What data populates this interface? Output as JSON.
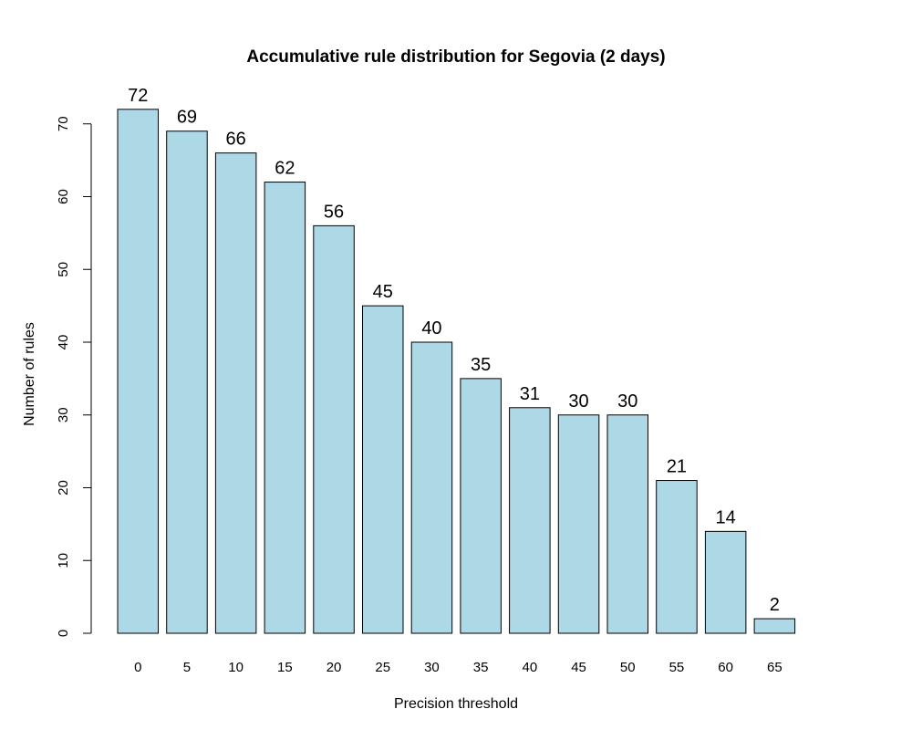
{
  "chart_data": {
    "type": "bar",
    "title": "Accumulative rule distribution for Segovia (2 days)",
    "xlabel": "Precision threshold",
    "ylabel": "Number of rules",
    "categories": [
      "0",
      "5",
      "10",
      "15",
      "20",
      "25",
      "30",
      "35",
      "40",
      "45",
      "50",
      "55",
      "60",
      "65"
    ],
    "values": [
      72,
      69,
      66,
      62,
      56,
      45,
      40,
      35,
      31,
      30,
      30,
      21,
      14,
      2
    ],
    "ylim": [
      0,
      75
    ],
    "yticks": [
      0,
      10,
      20,
      30,
      40,
      50,
      60,
      70
    ],
    "bar_color": "#add8e6",
    "grid": false,
    "data_labels": true
  }
}
